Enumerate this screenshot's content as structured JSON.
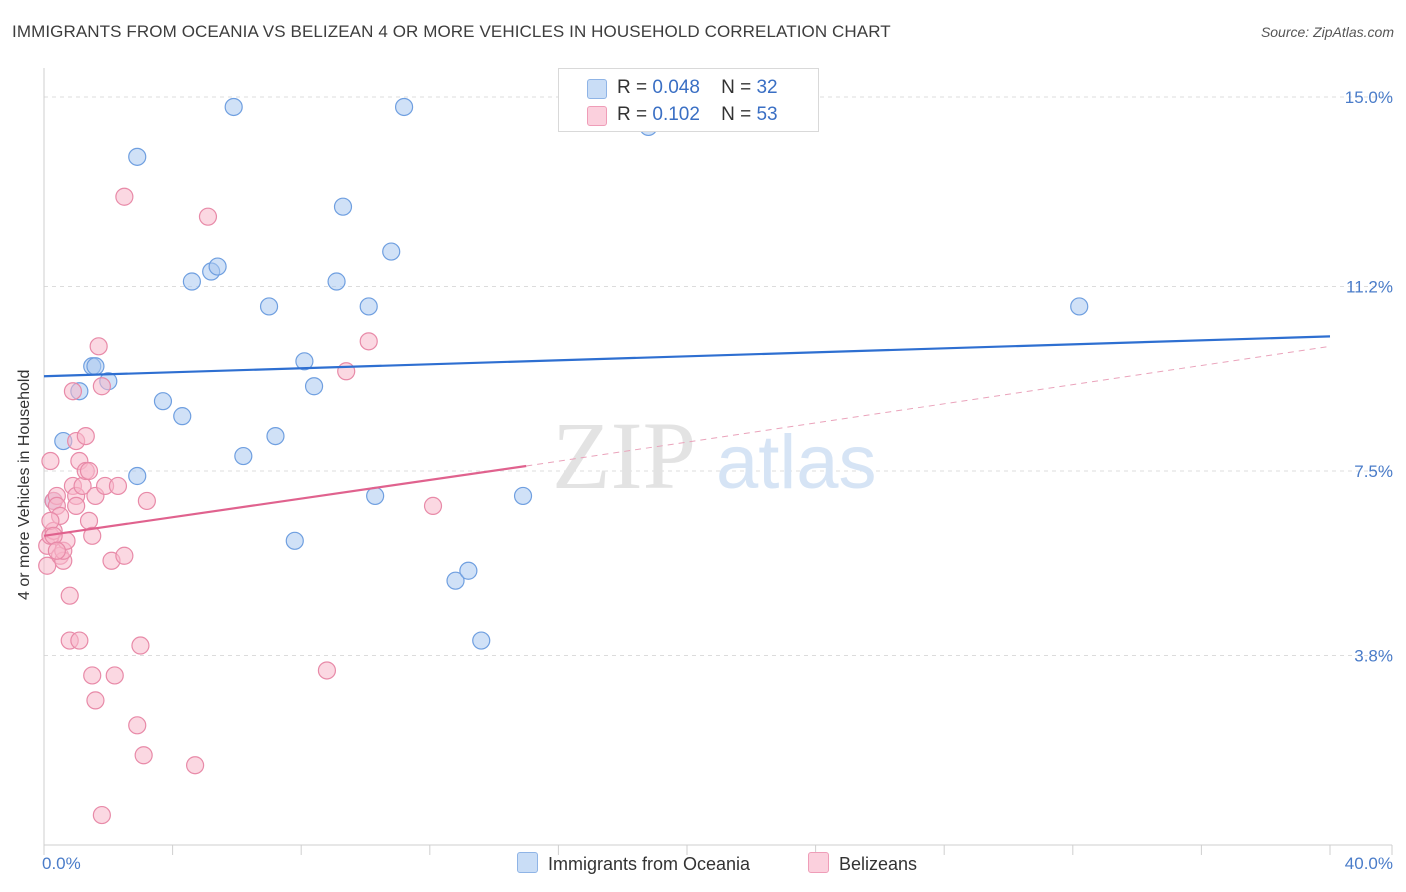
{
  "title": "IMMIGRANTS FROM OCEANIA VS BELIZEAN 4 OR MORE VEHICLES IN HOUSEHOLD CORRELATION CHART",
  "source": "Source: ZipAtlas.com",
  "watermark": {
    "zip": "ZIP",
    "atlas": "atlas"
  },
  "legend": {
    "r_label": "R =",
    "n_label": "N =",
    "rows": [
      {
        "r": "0.048",
        "n": "32",
        "color": "#a9c8f0"
      },
      {
        "r": "0.102",
        "n": "53",
        "color": "#f7b8cb"
      }
    ]
  },
  "colors": {
    "blue_fill": "#a9c8f0",
    "blue_stroke": "#6f9fe0",
    "blue_line": "#2e6fd1",
    "pink_fill": "#f7b8cb",
    "pink_stroke": "#e88aa8",
    "pink_line": "#e0628e",
    "tick": "#4a7cc9"
  },
  "chart_data": {
    "type": "scatter",
    "title": "IMMIGRANTS FROM OCEANIA VS BELIZEAN 4 OR MORE VEHICLES IN HOUSEHOLD CORRELATION CHART",
    "xlabel": "",
    "ylabel": "4 or more Vehicles in Household",
    "xlim": [
      0,
      40
    ],
    "ylim": [
      0,
      15.0
    ],
    "x_tick_labels": [
      "0.0%",
      "40.0%"
    ],
    "y_ticks": [
      3.8,
      7.5,
      11.2,
      15.0
    ],
    "y_tick_labels": [
      "3.8%",
      "7.5%",
      "11.2%",
      "15.0%"
    ],
    "grid": true,
    "series": [
      {
        "name": "Immigrants from Oceania",
        "r": 0.048,
        "n": 32,
        "trend": {
          "x": [
            0,
            40
          ],
          "y": [
            9.4,
            10.2
          ]
        },
        "points": [
          [
            0.3,
            6.9
          ],
          [
            0.6,
            8.1
          ],
          [
            1.1,
            9.1
          ],
          [
            1.5,
            9.6
          ],
          [
            1.6,
            9.6
          ],
          [
            2.0,
            9.3
          ],
          [
            2.9,
            13.8
          ],
          [
            2.9,
            7.4
          ],
          [
            3.7,
            8.9
          ],
          [
            4.3,
            8.6
          ],
          [
            4.6,
            11.3
          ],
          [
            5.2,
            11.5
          ],
          [
            5.4,
            11.6
          ],
          [
            5.9,
            14.8
          ],
          [
            6.2,
            7.8
          ],
          [
            7.0,
            10.8
          ],
          [
            7.2,
            8.2
          ],
          [
            7.8,
            6.1
          ],
          [
            8.1,
            9.7
          ],
          [
            8.4,
            9.2
          ],
          [
            9.1,
            11.3
          ],
          [
            9.3,
            12.8
          ],
          [
            10.1,
            10.8
          ],
          [
            10.3,
            7.0
          ],
          [
            10.8,
            11.9
          ],
          [
            11.2,
            14.8
          ],
          [
            12.8,
            5.3
          ],
          [
            13.2,
            5.5
          ],
          [
            13.6,
            4.1
          ],
          [
            14.9,
            7.0
          ],
          [
            18.8,
            14.4
          ],
          [
            32.2,
            10.8
          ]
        ]
      },
      {
        "name": "Belizeans",
        "r": 0.102,
        "n": 53,
        "trend": {
          "x": [
            0,
            15.0
          ],
          "y": [
            6.2,
            7.6
          ]
        },
        "trend_dashed": {
          "x": [
            15.0,
            40
          ],
          "y": [
            7.6,
            10.0
          ]
        },
        "points": [
          [
            0.1,
            5.6
          ],
          [
            0.1,
            6.0
          ],
          [
            0.2,
            6.2
          ],
          [
            0.2,
            7.7
          ],
          [
            0.3,
            6.3
          ],
          [
            0.3,
            6.9
          ],
          [
            0.4,
            7.0
          ],
          [
            0.4,
            6.8
          ],
          [
            0.5,
            5.8
          ],
          [
            0.5,
            6.6
          ],
          [
            0.6,
            5.7
          ],
          [
            0.6,
            5.9
          ],
          [
            0.7,
            6.1
          ],
          [
            0.8,
            5.0
          ],
          [
            0.8,
            4.1
          ],
          [
            0.9,
            9.1
          ],
          [
            0.9,
            7.2
          ],
          [
            1.0,
            7.0
          ],
          [
            1.0,
            6.8
          ],
          [
            1.0,
            8.1
          ],
          [
            1.1,
            7.7
          ],
          [
            1.1,
            4.1
          ],
          [
            1.2,
            7.2
          ],
          [
            1.3,
            8.2
          ],
          [
            1.3,
            7.5
          ],
          [
            1.4,
            7.5
          ],
          [
            1.4,
            6.5
          ],
          [
            1.5,
            3.4
          ],
          [
            1.5,
            6.2
          ],
          [
            1.6,
            2.9
          ],
          [
            1.6,
            7.0
          ],
          [
            1.7,
            10.0
          ],
          [
            1.8,
            9.2
          ],
          [
            1.8,
            0.6
          ],
          [
            1.9,
            7.2
          ],
          [
            2.1,
            5.7
          ],
          [
            2.2,
            3.4
          ],
          [
            2.3,
            7.2
          ],
          [
            2.5,
            5.8
          ],
          [
            2.5,
            13.0
          ],
          [
            2.9,
            2.4
          ],
          [
            3.0,
            4.0
          ],
          [
            3.1,
            1.8
          ],
          [
            3.2,
            6.9
          ],
          [
            4.7,
            1.6
          ],
          [
            5.1,
            12.6
          ],
          [
            8.8,
            3.5
          ],
          [
            9.4,
            9.5
          ],
          [
            10.1,
            10.1
          ],
          [
            12.1,
            6.8
          ],
          [
            0.2,
            6.5
          ],
          [
            0.3,
            6.2
          ],
          [
            0.4,
            5.9
          ]
        ]
      }
    ]
  },
  "bottom_legend": [
    "Immigrants from Oceania",
    "Belizeans"
  ]
}
